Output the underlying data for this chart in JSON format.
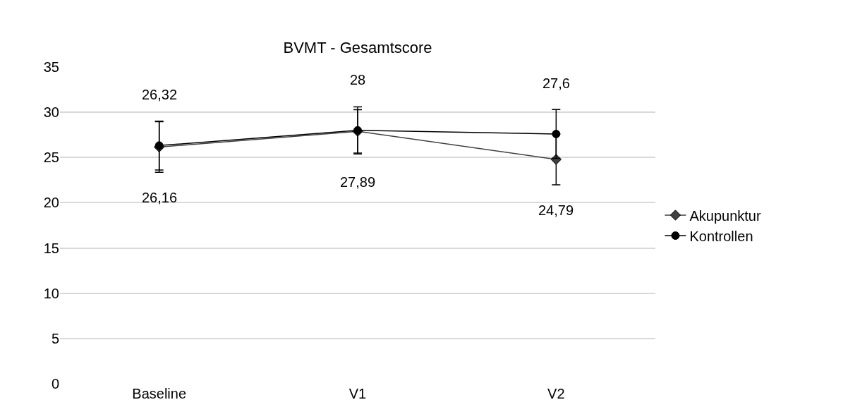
{
  "chart_data": {
    "type": "line",
    "title": "BVMT - Gesamtscore",
    "categories": [
      "Baseline",
      "V1",
      "V2"
    ],
    "series": [
      {
        "name": "Akupunktur",
        "color": "#404040",
        "marker": "diamond",
        "values": [
          26.16,
          27.89,
          24.79
        ],
        "value_labels": [
          "26,16",
          "27,89",
          "24,79"
        ],
        "errors": [
          2.8,
          2.4,
          2.8
        ]
      },
      {
        "name": "Kontrollen",
        "color": "#000000",
        "marker": "circle",
        "values": [
          26.32,
          28,
          27.6
        ],
        "value_labels": [
          "26,32",
          "28",
          "27,6"
        ],
        "errors": [
          2.7,
          2.6,
          2.7
        ]
      }
    ],
    "ylim": [
      0,
      35
    ],
    "yticks": [
      0,
      5,
      10,
      15,
      20,
      25,
      30,
      35
    ],
    "grid": "y",
    "legend": "right",
    "line_style": "solid"
  }
}
